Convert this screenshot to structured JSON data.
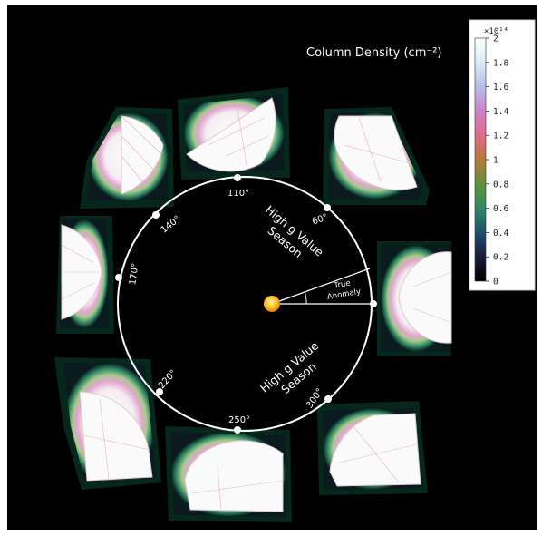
{
  "colorbar": {
    "title": "Column Density (cm⁻²)",
    "exponent": "×10¹⁴",
    "ticks": [
      "2",
      "1.8",
      "1.6",
      "1.4",
      "1.2",
      "1",
      "0.8",
      "0.6",
      "0.4",
      "0.2",
      "0"
    ],
    "top_tick": "2",
    "stops": [
      "#ffffff",
      "#d8ecf6",
      "#b7bde6",
      "#c985c8",
      "#e06a8e",
      "#b57a3a",
      "#62903c",
      "#2f8a64",
      "#1f4f6d",
      "#1a1a3a",
      "#000000"
    ]
  },
  "orbit": {
    "angle_labels": [
      "110°",
      "60°",
      "140°",
      "170°",
      "220°",
      "250°",
      "300°"
    ],
    "season_upper": {
      "line1": "High g Value",
      "line2": "Season"
    },
    "season_lower": {
      "line1": "High g Value",
      "line2": "Season"
    },
    "true_anomaly": {
      "line1": "True",
      "line2": "Anomaly"
    },
    "sun_color": "#ffbb22"
  }
}
